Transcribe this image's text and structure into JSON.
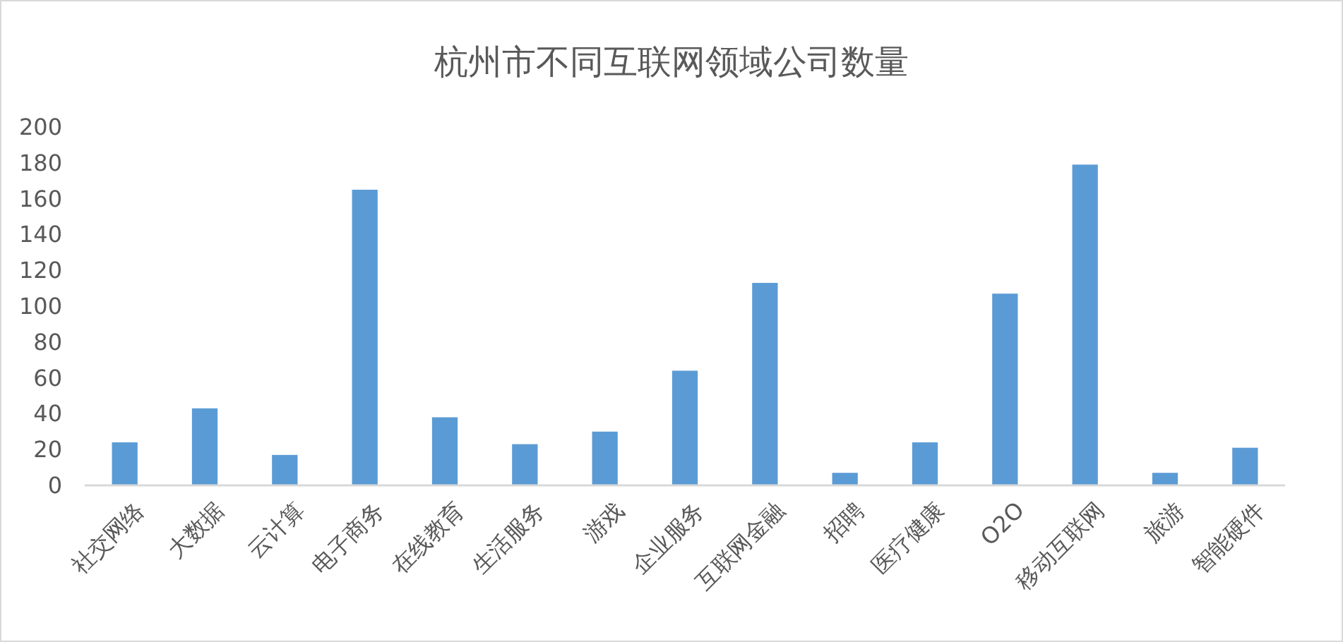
{
  "chart_data": {
    "type": "bar",
    "title": "杭州市不同互联网领域公司数量",
    "categories": [
      "社交网络",
      "大数据",
      "云计算",
      "电子商务",
      "在线教育",
      "生活服务",
      "游戏",
      "企业服务",
      "互联网金融",
      "招聘",
      "医疗健康",
      "O2O",
      "移动互联网",
      "旅游",
      "智能硬件"
    ],
    "values": [
      24,
      43,
      17,
      165,
      38,
      23,
      30,
      64,
      113,
      7,
      24,
      107,
      179,
      7,
      21
    ],
    "color": "#5b9bd5",
    "ylim": [
      0,
      200
    ],
    "yticks": [
      0,
      20,
      40,
      60,
      80,
      100,
      120,
      140,
      160,
      180,
      200
    ],
    "grid": false
  }
}
